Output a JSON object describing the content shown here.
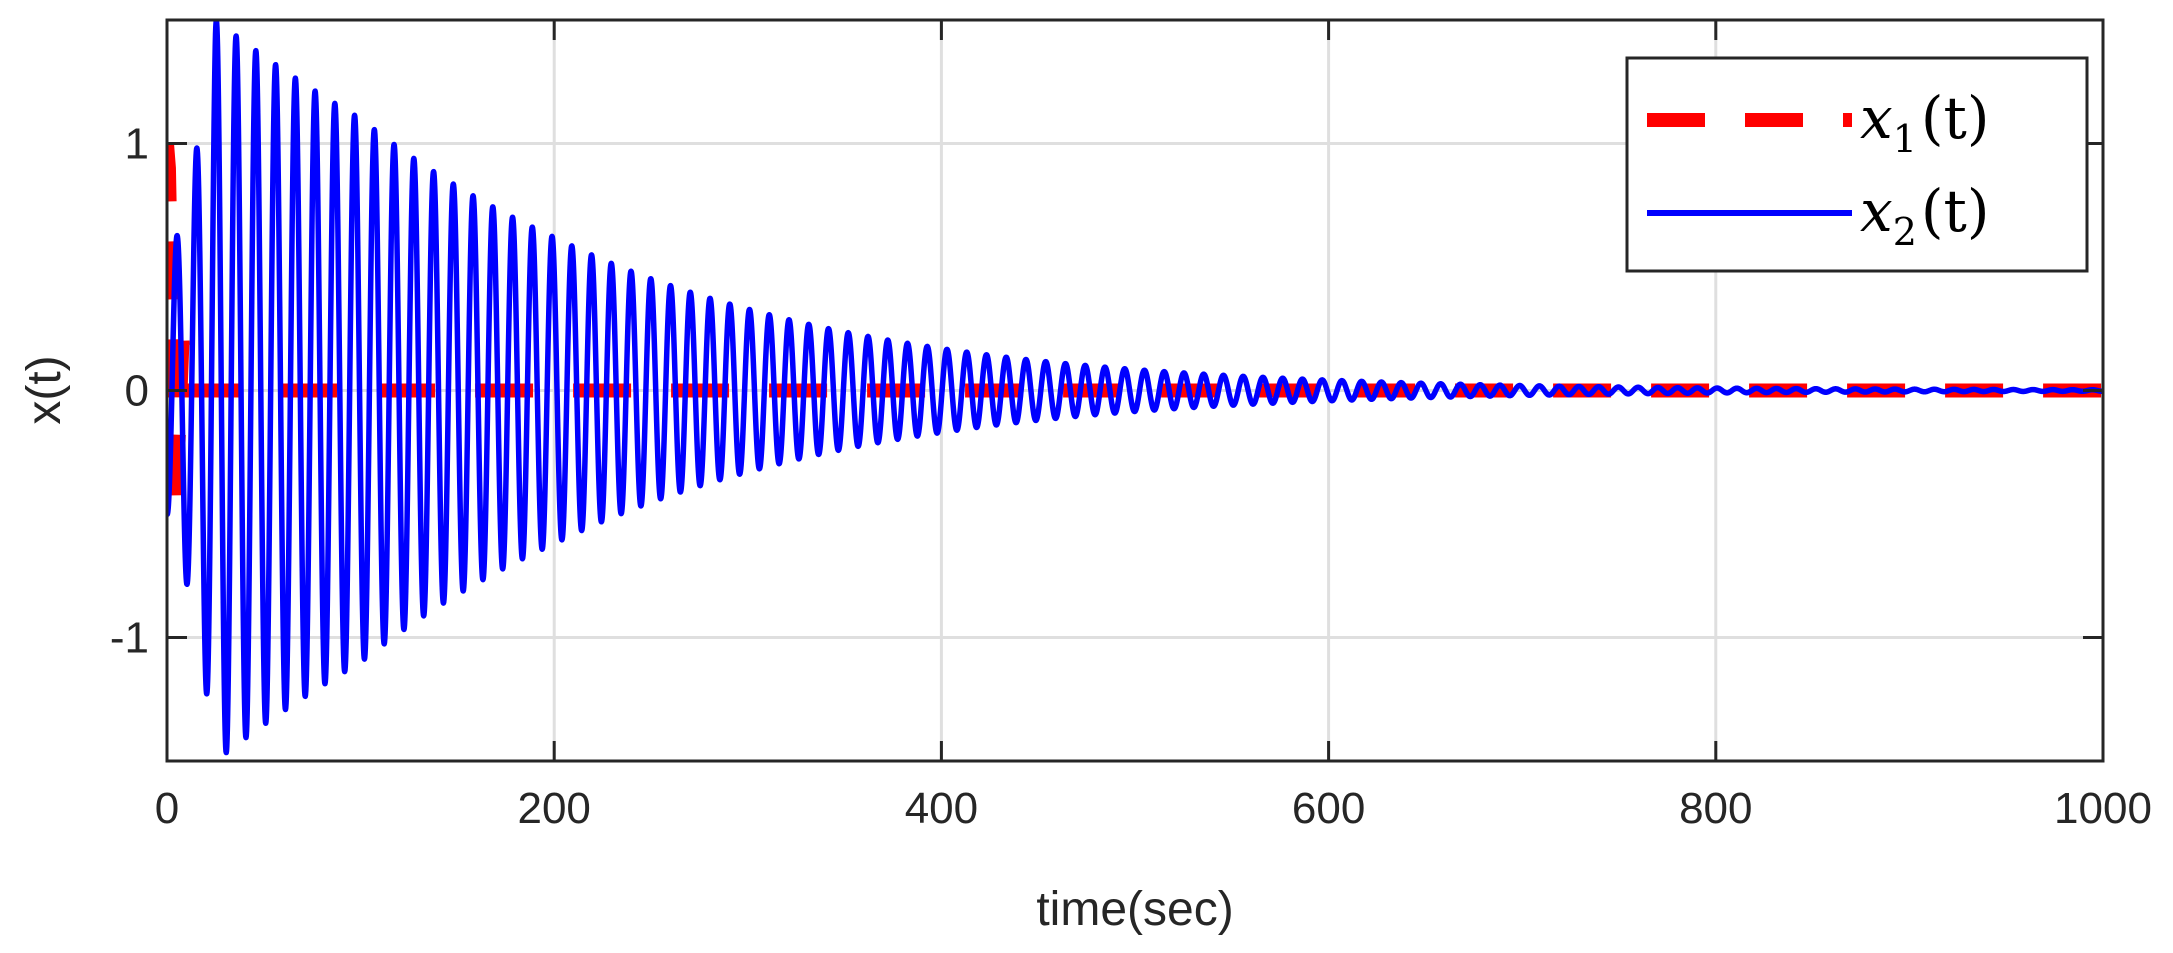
{
  "chart_data": {
    "type": "line",
    "title": "",
    "xlabel": "time(sec)",
    "ylabel": "x(t)",
    "xlim": [
      0,
      1000
    ],
    "ylim": [
      -1.5,
      1.5
    ],
    "xticks": [
      0,
      200,
      400,
      600,
      800,
      1000
    ],
    "xtick_labels": [
      "0",
      "200",
      "400",
      "600",
      "800",
      "1000"
    ],
    "yticks": [
      -1,
      0,
      1
    ],
    "ytick_labels": [
      "-1",
      "0",
      "1"
    ],
    "grid": true,
    "legend_position": "top-right",
    "series": [
      {
        "name": "x1(t)",
        "color": "#ff0000",
        "style": "dashed",
        "x": [
          0,
          1,
          2,
          3,
          4,
          5,
          6,
          8,
          10,
          1000
        ],
        "y": [
          1.0,
          0.9,
          0.5,
          0.0,
          -0.5,
          -0.4,
          -0.2,
          0.2,
          0.0,
          0.0
        ]
      },
      {
        "name": "x2(t)",
        "color": "#0000ff",
        "style": "solid",
        "description_param": "damped oscillation",
        "amplitude_peak": 1.5,
        "time_of_peak": 25,
        "period": 10.2,
        "x_envelope": [
          0,
          25,
          100,
          200,
          300,
          400,
          500,
          600,
          700,
          800,
          1000
        ],
        "y_envelope": [
          0.5,
          1.5,
          1.1,
          0.62,
          0.33,
          0.17,
          0.085,
          0.042,
          0.02,
          0.01,
          0.003
        ]
      }
    ],
    "legend": {
      "x1_main": "x",
      "x1_sub": "1",
      "x1_tail": "(t)",
      "x2_main": "x",
      "x2_sub": "2",
      "x2_tail": "(t)"
    }
  }
}
